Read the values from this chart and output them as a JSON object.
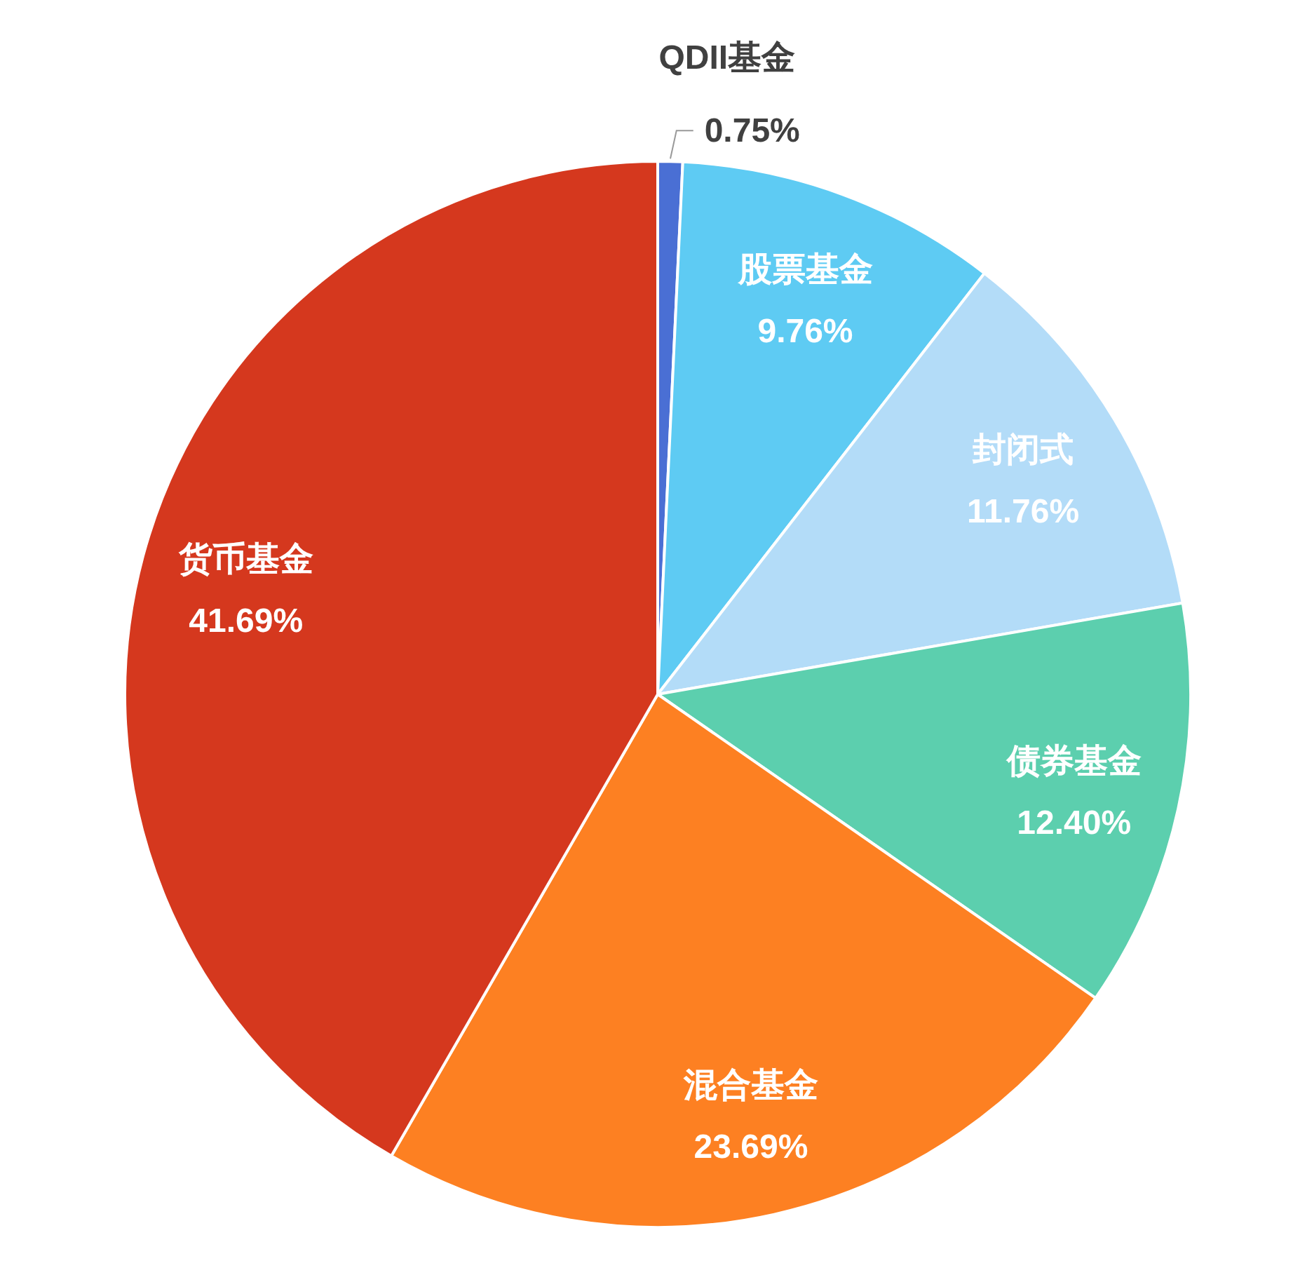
{
  "chart_data": {
    "type": "pie",
    "categories": [
      "QDII基金",
      "股票基金",
      "封闭式",
      "债券基金",
      "混合基金",
      "货币基金"
    ],
    "values": [
      0.75,
      9.76,
      11.76,
      12.4,
      23.69,
      41.69
    ],
    "value_labels": [
      "0.75%",
      "9.76%",
      "11.76%",
      "12.40%",
      "23.69%",
      "41.69%"
    ],
    "colors": [
      "#4a6fd4",
      "#5ecbf3",
      "#b3dcf8",
      "#5ccfae",
      "#fd8022",
      "#d5381e"
    ]
  }
}
